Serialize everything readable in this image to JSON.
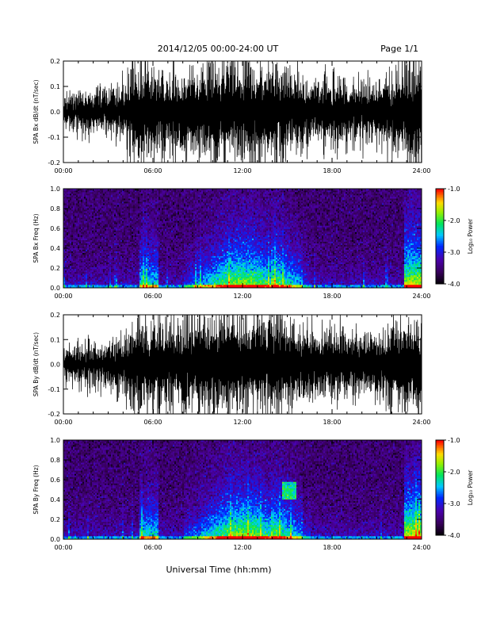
{
  "header": {
    "title": "2014/12/05  00:00-24:00 UT",
    "page": "Page 1/1"
  },
  "footer": {
    "xlabel": "Universal Time (hh:mm)"
  },
  "colorbar": {
    "label": "Log₁₀ Power",
    "ticks": [
      "-1.0",
      "-2.0",
      "-3.0",
      "-4.0"
    ],
    "range": [
      -4.0,
      -1.0
    ]
  },
  "chart_data": [
    {
      "type": "line",
      "panel": "bx-waveform",
      "ylabel": "SPA Bx dB/dt (nT/sec)",
      "xlabel": "",
      "xlim": [
        "00:00",
        "24:00"
      ],
      "ylim": [
        -0.2,
        0.2
      ],
      "x_ticks": [
        "00:00",
        "06:00",
        "12:00",
        "18:00",
        "24:00"
      ],
      "y_ticks": [
        "-0.2",
        "-0.1",
        "0.0",
        "0.1",
        "0.2"
      ],
      "envelope_hours": [
        0,
        1,
        2,
        3,
        4,
        5,
        6,
        7,
        8,
        9,
        10,
        11,
        12,
        13,
        14,
        15,
        16,
        17,
        18,
        19,
        20,
        21,
        22,
        23,
        24
      ],
      "envelope_amplitude": [
        0.06,
        0.07,
        0.08,
        0.09,
        0.11,
        0.2,
        0.16,
        0.14,
        0.15,
        0.18,
        0.2,
        0.2,
        0.2,
        0.2,
        0.2,
        0.17,
        0.13,
        0.12,
        0.15,
        0.12,
        0.11,
        0.12,
        0.14,
        0.2,
        0.2
      ]
    },
    {
      "type": "heatmap",
      "panel": "bx-spectrogram",
      "ylabel": "SPA Bx Freq (Hz)",
      "xlim": [
        "00:00",
        "24:00"
      ],
      "ylim": [
        0.0,
        1.0
      ],
      "x_ticks": [
        "00:00",
        "06:00",
        "12:00",
        "18:00",
        "24:00"
      ],
      "y_ticks": [
        "0.0",
        "0.2",
        "0.4",
        "0.6",
        "0.8",
        "1.0"
      ],
      "colorbar_label": "Log₁₀ Power",
      "z_range": [
        -4.0,
        -1.0
      ]
    },
    {
      "type": "line",
      "panel": "by-waveform",
      "ylabel": "SPA By dB/dt (nT/sec)",
      "xlim": [
        "00:00",
        "24:00"
      ],
      "ylim": [
        -0.2,
        0.2
      ],
      "x_ticks": [
        "00:00",
        "06:00",
        "12:00",
        "18:00",
        "24:00"
      ],
      "y_ticks": [
        "-0.2",
        "-0.1",
        "0.0",
        "0.1",
        "0.2"
      ],
      "envelope_hours": [
        0,
        1,
        2,
        3,
        4,
        5,
        6,
        7,
        8,
        9,
        10,
        11,
        12,
        13,
        14,
        15,
        16,
        17,
        18,
        19,
        20,
        21,
        22,
        23,
        24
      ],
      "envelope_amplitude": [
        0.07,
        0.08,
        0.09,
        0.1,
        0.12,
        0.2,
        0.17,
        0.15,
        0.16,
        0.19,
        0.2,
        0.2,
        0.2,
        0.2,
        0.2,
        0.18,
        0.14,
        0.13,
        0.15,
        0.13,
        0.12,
        0.13,
        0.15,
        0.2,
        0.2
      ]
    },
    {
      "type": "heatmap",
      "panel": "by-spectrogram",
      "ylabel": "SPA By Freq (Hz)",
      "xlim": [
        "00:00",
        "24:00"
      ],
      "ylim": [
        0.0,
        1.0
      ],
      "x_ticks": [
        "00:00",
        "06:00",
        "12:00",
        "18:00",
        "24:00"
      ],
      "y_ticks": [
        "0.0",
        "0.2",
        "0.4",
        "0.6",
        "0.8",
        "1.0"
      ],
      "colorbar_label": "Log₁₀ Power",
      "z_range": [
        -4.0,
        -1.0
      ]
    }
  ]
}
